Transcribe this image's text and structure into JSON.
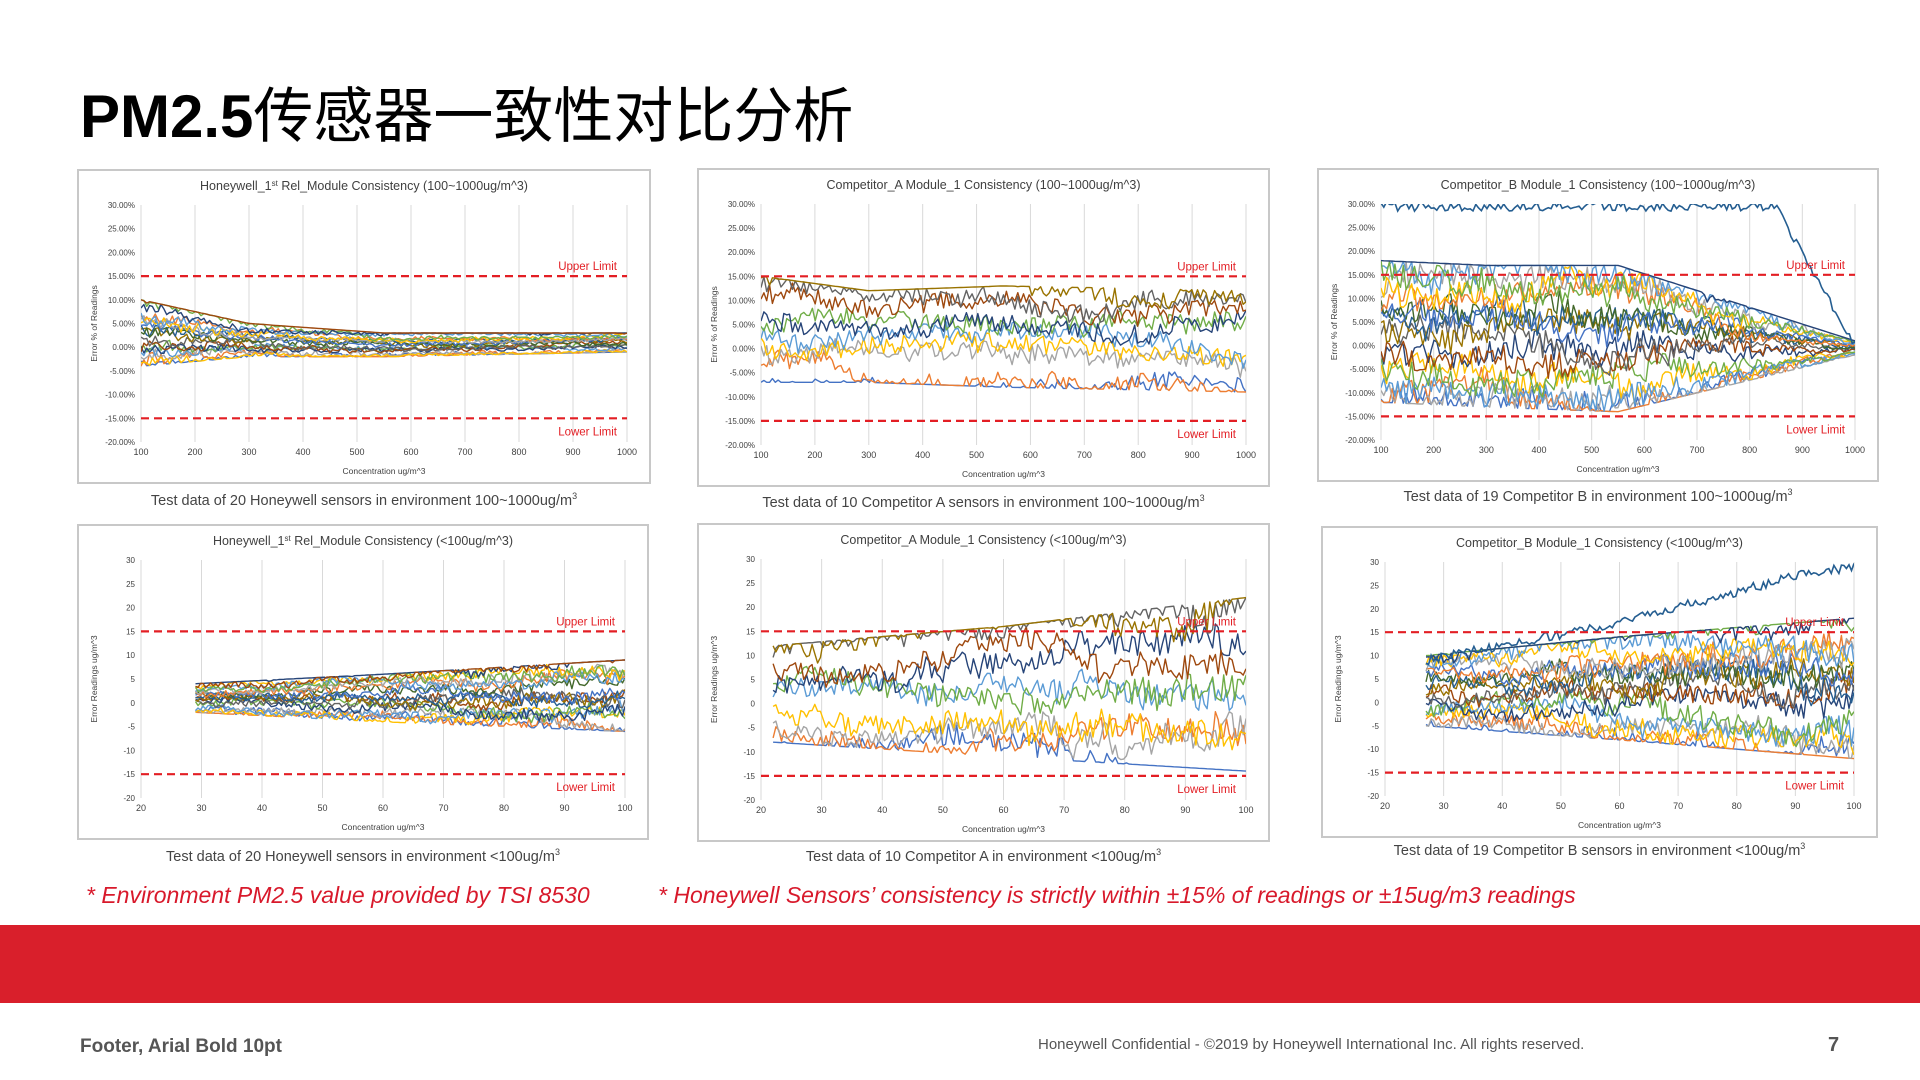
{
  "slide": {
    "title_prefix": "PM2.5",
    "title_suffix": "传感器一致性对比分析",
    "note_left": "* Environment PM2.5 value provided by TSI 8530",
    "note_right": "* Honeywell Sensors’ consistency is strictly within ±15%  of readings or ±15ug/m3 readings",
    "footer_left": "Footer, Arial Bold 10pt",
    "footer_center": "Honeywell  Confidential  - ©2019  by Honeywell  International  Inc. All rights reserved.",
    "page_number": "7"
  },
  "colors": {
    "limit_line": "#e31e24",
    "brand_band": "#d91f2b",
    "series_palette": [
      "#4472c4",
      "#ed7d31",
      "#a5a5a5",
      "#ffc000",
      "#5b9bd5",
      "#70ad47",
      "#264478",
      "#9e480e",
      "#636363",
      "#997300",
      "#255e91",
      "#43682b"
    ]
  },
  "chart_data": [
    {
      "type": "line",
      "title": "Honeywell_1st Rel_Module Consistency (100~1000ug/m^3)",
      "title_main": "Honeywell_1",
      "title_sup": "st",
      "title_rest": " Rel_Module Consistency (100~1000ug/m^3)",
      "xlabel": "Concentration ug/m^3",
      "ylabel": "Error % of Readings",
      "xlim": [
        100,
        1000
      ],
      "ylim": [
        -20,
        30
      ],
      "x_ticks": [
        "100",
        "200",
        "300",
        "400",
        "500",
        "600",
        "700",
        "800",
        "900",
        "1000"
      ],
      "y_ticks": [
        "30.00%",
        "25.00%",
        "20.00%",
        "15.00%",
        "10.00%",
        "5.00%",
        "0.00%",
        "-5.00%",
        "-10.00%",
        "-15.00%",
        "-20.00%"
      ],
      "upper_limit": 15,
      "lower_limit": -15,
      "upper_label": "Upper Limit",
      "lower_label": "Lower Limit",
      "sensor_count": 20,
      "envelope": {
        "x": [
          100,
          300,
          550,
          1000
        ],
        "upper": [
          10,
          5,
          3,
          3
        ],
        "lower": [
          -4,
          -2,
          -2,
          -1
        ]
      },
      "caption_text": "Test  data  of 20  Honeywell  sensors  in  environment   100~1000ug/m",
      "caption_sup": "3"
    },
    {
      "type": "line",
      "title": "Competitor_A Module_1 Consistency (100~1000ug/m^3)",
      "title_main": "Competitor_A Module_1 Consistency (100~1000ug/m^3)",
      "title_sup": "",
      "title_rest": "",
      "xlabel": "Concentration ug/m^3",
      "ylabel": "Error % of Readings",
      "xlim": [
        100,
        1000
      ],
      "ylim": [
        -20,
        30
      ],
      "x_ticks": [
        "100",
        "200",
        "300",
        "400",
        "500",
        "600",
        "700",
        "800",
        "900",
        "1000"
      ],
      "y_ticks": [
        "30.00%",
        "25.00%",
        "20.00%",
        "15.00%",
        "10.00%",
        "5.00%",
        "0.00%",
        "-5.00%",
        "-10.00%",
        "-15.00%",
        "-20.00%"
      ],
      "upper_limit": 15,
      "lower_limit": -15,
      "upper_label": "Upper Limit",
      "lower_label": "Lower Limit",
      "sensor_count": 10,
      "envelope": {
        "x": [
          100,
          300,
          550,
          1000
        ],
        "upper": [
          15,
          12,
          13,
          12
        ],
        "lower": [
          -7,
          -7,
          -8,
          -9
        ]
      },
      "caption_text": "Test  data  of 10  Competitor  A sensors  in  environment   100~1000ug/m",
      "caption_sup": "3"
    },
    {
      "type": "line",
      "title": "Competitor_B Module_1 Consistency (100~1000ug/m^3)",
      "title_main": "Competitor_B Module_1 Consistency (100~1000ug/m^3)",
      "title_sup": "",
      "title_rest": "",
      "xlabel": "Concentration ug/m^3",
      "ylabel": "Error % of Readings",
      "xlim": [
        100,
        1000
      ],
      "ylim": [
        -20,
        30
      ],
      "x_ticks": [
        "100",
        "200",
        "300",
        "400",
        "500",
        "600",
        "700",
        "800",
        "900",
        "1000"
      ],
      "y_ticks": [
        "30.00%",
        "25.00%",
        "20.00%",
        "15.00%",
        "10.00%",
        "5.00%",
        "0.00%",
        "-5.00%",
        "-10.00%",
        "-15.00%",
        "-20.00%"
      ],
      "upper_limit": 15,
      "lower_limit": -15,
      "upper_label": "Upper Limit",
      "lower_label": "Lower Limit",
      "sensor_count": 19,
      "envelope": {
        "x": [
          100,
          300,
          550,
          1000
        ],
        "upper": [
          18,
          17,
          17,
          1
        ],
        "lower": [
          -12,
          -13,
          -14,
          -2
        ]
      },
      "outlier_series": {
        "x": [
          100,
          850,
          1000
        ],
        "y": [
          29.5,
          29.5,
          0
        ]
      },
      "caption_text": "Test  data  of 19  Competitor  B in  environment    100~1000ug/m",
      "caption_sup": "3"
    },
    {
      "type": "line",
      "title": "Honeywell_1st Rel_Module Consistency (<100ug/m^3)",
      "title_main": "Honeywell_1",
      "title_sup": "st",
      "title_rest": " Rel_Module Consistency (<100ug/m^3)",
      "xlabel": "Concentration ug/m^3",
      "ylabel": "Error Readings ug/m^3",
      "xlim": [
        20,
        100
      ],
      "ylim": [
        -20,
        30
      ],
      "x_ticks": [
        "20",
        "30",
        "40",
        "50",
        "60",
        "70",
        "80",
        "90",
        "100"
      ],
      "y_ticks": [
        "30",
        "25",
        "20",
        "15",
        "10",
        "5",
        "0",
        "-5",
        "-10",
        "-15",
        "-20"
      ],
      "upper_limit": 15,
      "lower_limit": -15,
      "upper_label": "Upper Limit",
      "lower_label": "Lower Limit",
      "sensor_count": 20,
      "data_start_x": 29,
      "envelope": {
        "x": [
          29,
          60,
          100
        ],
        "upper": [
          4,
          6,
          9
        ],
        "lower": [
          -2,
          -4,
          -6
        ]
      },
      "caption_text": "Test  data  of 20  Honeywell  sensors  in  environment    <100ug/m",
      "caption_sup": "3"
    },
    {
      "type": "line",
      "title": "Competitor_A Module_1 Consistency (<100ug/m^3)",
      "title_main": "Competitor_A Module_1 Consistency (<100ug/m^3)",
      "title_sup": "",
      "title_rest": "",
      "xlabel": "Concentration ug/m^3",
      "ylabel": "Error Readings ug/m^3",
      "xlim": [
        20,
        100
      ],
      "ylim": [
        -20,
        30
      ],
      "x_ticks": [
        "20",
        "30",
        "40",
        "50",
        "60",
        "70",
        "80",
        "90",
        "100"
      ],
      "y_ticks": [
        "30",
        "25",
        "20",
        "15",
        "10",
        "5",
        "0",
        "-5",
        "-10",
        "-15",
        "-20"
      ],
      "upper_limit": 15,
      "lower_limit": -15,
      "upper_label": "Upper Limit",
      "lower_label": "Lower Limit",
      "sensor_count": 10,
      "data_start_x": 22,
      "envelope": {
        "x": [
          22,
          60,
          100
        ],
        "upper": [
          12,
          16,
          22
        ],
        "lower": [
          -8,
          -11,
          -14
        ]
      },
      "caption_text": "Test  data  of 10  Competitor  A in  environment     <100ug/m",
      "caption_sup": "3"
    },
    {
      "type": "line",
      "title": "Competitor_B Module_1 Consistency (<100ug/m^3)",
      "title_main": "Competitor_B Module_1 Consistency (<100ug/m^3)",
      "title_sup": "",
      "title_rest": "",
      "xlabel": "Concentration ug/m^3",
      "ylabel": "Error Readings ug/m^3",
      "xlim": [
        20,
        100
      ],
      "ylim": [
        -20,
        30
      ],
      "x_ticks": [
        "20",
        "30",
        "40",
        "50",
        "60",
        "70",
        "80",
        "90",
        "100"
      ],
      "y_ticks": [
        "30",
        "25",
        "20",
        "15",
        "10",
        "5",
        "0",
        "-5",
        "-10",
        "-15",
        "-20"
      ],
      "upper_limit": 15,
      "lower_limit": -15,
      "upper_label": "Upper Limit",
      "lower_label": "Lower Limit",
      "sensor_count": 19,
      "data_start_x": 27,
      "envelope": {
        "x": [
          27,
          60,
          100
        ],
        "upper": [
          10,
          14,
          18
        ],
        "lower": [
          -5,
          -8,
          -12
        ]
      },
      "outlier_series": {
        "x": [
          27,
          60,
          90,
          100
        ],
        "y": [
          9,
          17,
          27,
          29
        ]
      },
      "caption_text": "Test  data  of 19  Competitor  B sensors  in  environment   <100ug/m",
      "caption_sup": "3"
    }
  ]
}
